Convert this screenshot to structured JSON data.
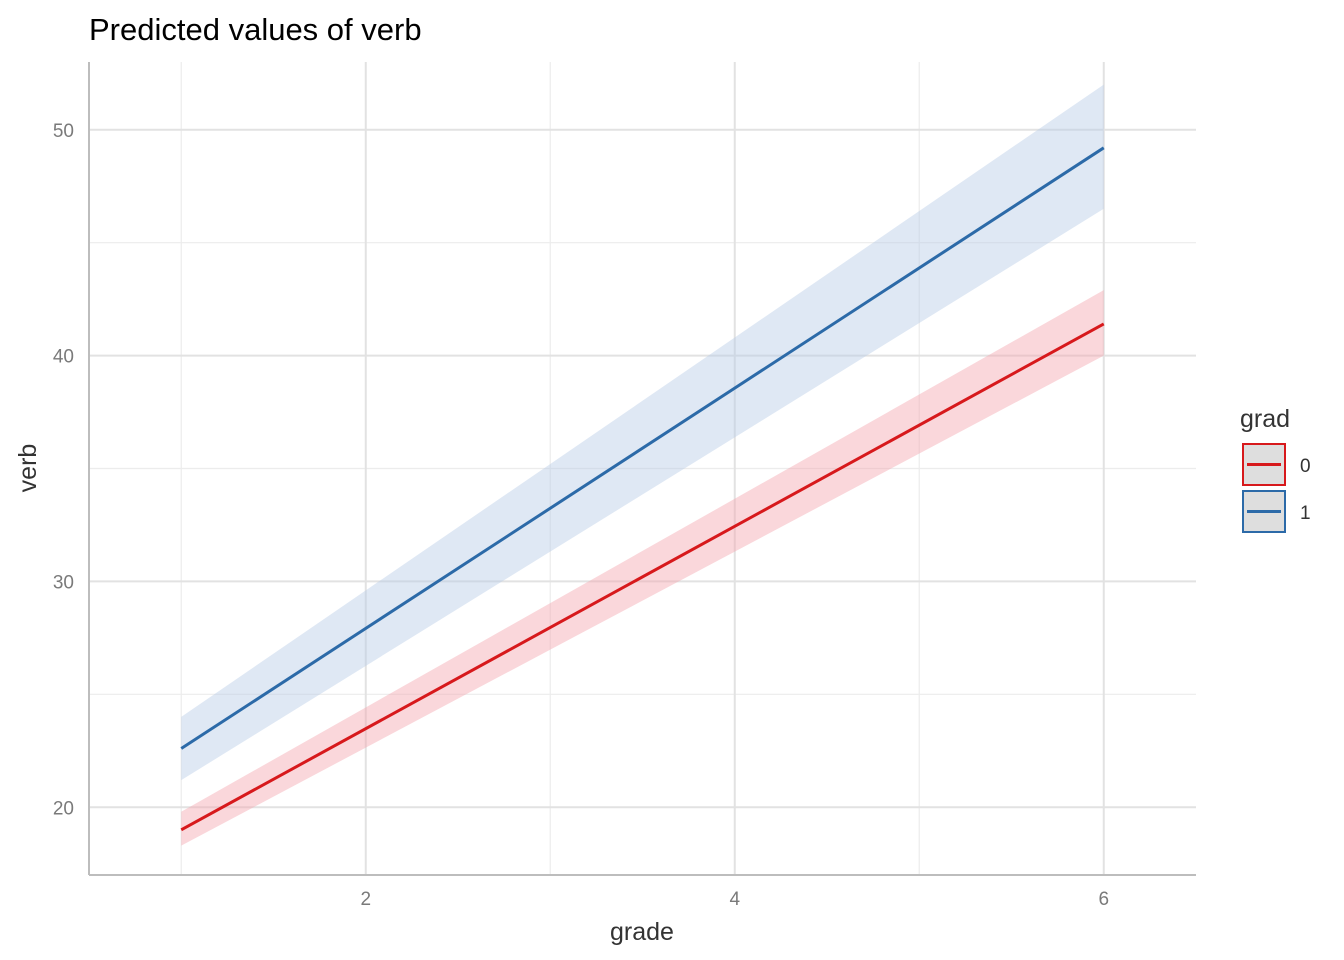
{
  "chart_data": {
    "type": "line",
    "title": "Predicted values of verb",
    "xlabel": "grade",
    "ylabel": "verb",
    "xlim": [
      0.5,
      6.5
    ],
    "ylim": [
      17,
      53
    ],
    "x_ticks": [
      2,
      4,
      6
    ],
    "x_tick_labels": [
      "2",
      "4",
      "6"
    ],
    "y_ticks": [
      20,
      30,
      40,
      50
    ],
    "y_tick_labels": [
      "20",
      "30",
      "40",
      "50"
    ],
    "grid": true,
    "legend": {
      "title": "grad",
      "position": "right"
    },
    "series": [
      {
        "name": "0",
        "color": "#d7191c",
        "band_color": "#f4a6b0",
        "x": [
          1,
          6
        ],
        "y": [
          19.0,
          41.4
        ],
        "lower": [
          18.3,
          40.0
        ],
        "upper": [
          19.8,
          42.9
        ]
      },
      {
        "name": "1",
        "color": "#2c6aa8",
        "band_color": "#b9cde6",
        "x": [
          1,
          6
        ],
        "y": [
          22.6,
          49.2
        ],
        "lower": [
          21.2,
          46.5
        ],
        "upper": [
          24.0,
          52.0
        ]
      }
    ]
  }
}
